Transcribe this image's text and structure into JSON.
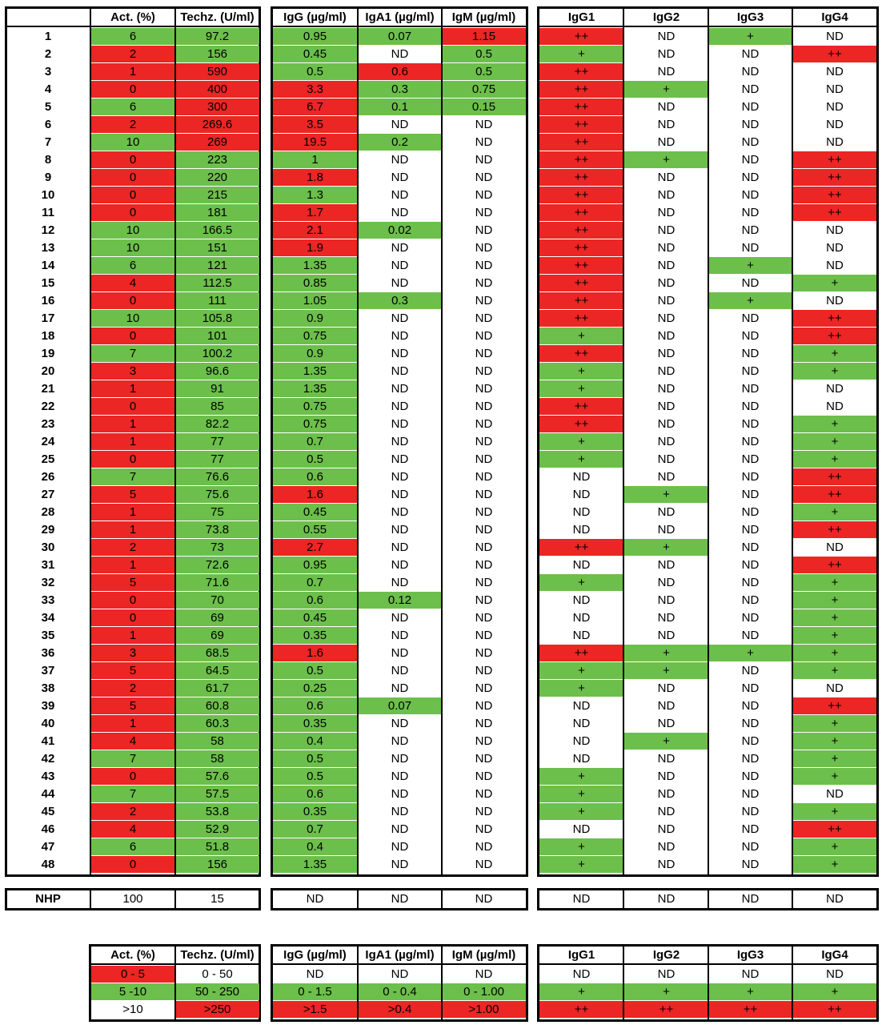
{
  "headers": {
    "act": "Act. (%)",
    "techz": "Techz. (U/ml)",
    "igg": "IgG (µg/ml)",
    "iga1": "IgA1 (µg/ml)",
    "igm": "IgM (µg/ml)",
    "igg1": "IgG1",
    "igg2": "IgG2",
    "igg3": "IgG3",
    "igg4": "IgG4"
  },
  "colors": {
    "green": "#6cbf4b",
    "red": "#ec2525",
    "white": "#ffffff"
  },
  "rows": [
    {
      "id": "1",
      "act": "6",
      "techz": "97.2",
      "igg": "0.95",
      "iga1": "0.07",
      "igm": "1.15",
      "igg1": "++",
      "igg2": "ND",
      "igg3": "+",
      "igg4": "ND"
    },
    {
      "id": "2",
      "act": "2",
      "techz": "156",
      "igg": "0.45",
      "iga1": "ND",
      "igm": "0.5",
      "igg1": "+",
      "igg2": "ND",
      "igg3": "ND",
      "igg4": "++"
    },
    {
      "id": "3",
      "act": "1",
      "techz": "590",
      "igg": "0.5",
      "iga1": "0.6",
      "igm": "0.5",
      "igg1": "++",
      "igg2": "ND",
      "igg3": "ND",
      "igg4": "ND"
    },
    {
      "id": "4",
      "act": "0",
      "techz": "400",
      "igg": "3.3",
      "iga1": "0.3",
      "igm": "0.75",
      "igg1": "++",
      "igg2": "+",
      "igg3": "ND",
      "igg4": "ND"
    },
    {
      "id": "5",
      "act": "6",
      "techz": "300",
      "igg": "6.7",
      "iga1": "0.1",
      "igm": "0.15",
      "igg1": "++",
      "igg2": "ND",
      "igg3": "ND",
      "igg4": "ND"
    },
    {
      "id": "6",
      "act": "2",
      "techz": "269.6",
      "igg": "3.5",
      "iga1": "ND",
      "igm": "ND",
      "igg1": "++",
      "igg2": "ND",
      "igg3": "ND",
      "igg4": "ND"
    },
    {
      "id": "7",
      "act": "10",
      "techz": "269",
      "igg": "19.5",
      "iga1": "0.2",
      "igm": "ND",
      "igg1": "++",
      "igg2": "ND",
      "igg3": "ND",
      "igg4": "ND"
    },
    {
      "id": "8",
      "act": "0",
      "techz": "223",
      "igg": "1",
      "iga1": "ND",
      "igm": "ND",
      "igg1": "++",
      "igg2": "+",
      "igg3": "ND",
      "igg4": "++"
    },
    {
      "id": "9",
      "act": "0",
      "techz": "220",
      "igg": "1.8",
      "iga1": "ND",
      "igm": "ND",
      "igg1": "++",
      "igg2": "ND",
      "igg3": "ND",
      "igg4": "++"
    },
    {
      "id": "10",
      "act": "0",
      "techz": "215",
      "igg": "1.3",
      "iga1": "ND",
      "igm": "ND",
      "igg1": "++",
      "igg2": "ND",
      "igg3": "ND",
      "igg4": "++"
    },
    {
      "id": "11",
      "act": "0",
      "techz": "181",
      "igg": "1.7",
      "iga1": "ND",
      "igm": "ND",
      "igg1": "++",
      "igg2": "ND",
      "igg3": "ND",
      "igg4": "++"
    },
    {
      "id": "12",
      "act": "10",
      "techz": "166.5",
      "igg": "2.1",
      "iga1": "0.02",
      "igm": "ND",
      "igg1": "++",
      "igg2": "ND",
      "igg3": "ND",
      "igg4": "ND"
    },
    {
      "id": "13",
      "act": "10",
      "techz": "151",
      "igg": "1.9",
      "iga1": "ND",
      "igm": "ND",
      "igg1": "++",
      "igg2": "ND",
      "igg3": "ND",
      "igg4": "ND"
    },
    {
      "id": "14",
      "act": "6",
      "techz": "121",
      "igg": "1.35",
      "iga1": "ND",
      "igm": "ND",
      "igg1": "++",
      "igg2": "ND",
      "igg3": "+",
      "igg4": "ND"
    },
    {
      "id": "15",
      "act": "4",
      "techz": "112.5",
      "igg": "0.85",
      "iga1": "ND",
      "igm": "ND",
      "igg1": "++",
      "igg2": "ND",
      "igg3": "ND",
      "igg4": "+"
    },
    {
      "id": "16",
      "act": "0",
      "techz": "111",
      "igg": "1.05",
      "iga1": "0.3",
      "igm": "ND",
      "igg1": "++",
      "igg2": "ND",
      "igg3": "+",
      "igg4": "ND"
    },
    {
      "id": "17",
      "act": "10",
      "techz": "105.8",
      "igg": "0.9",
      "iga1": "ND",
      "igm": "ND",
      "igg1": "++",
      "igg2": "ND",
      "igg3": "ND",
      "igg4": "++"
    },
    {
      "id": "18",
      "act": "0",
      "techz": "101",
      "igg": "0.75",
      "iga1": "ND",
      "igm": "ND",
      "igg1": "+",
      "igg2": "ND",
      "igg3": "ND",
      "igg4": "++"
    },
    {
      "id": "19",
      "act": "7",
      "techz": "100.2",
      "igg": "0.9",
      "iga1": "ND",
      "igm": "ND",
      "igg1": "++",
      "igg2": "ND",
      "igg3": "ND",
      "igg4": "+"
    },
    {
      "id": "20",
      "act": "3",
      "techz": "96.6",
      "igg": "1.35",
      "iga1": "ND",
      "igm": "ND",
      "igg1": "+",
      "igg2": "ND",
      "igg3": "ND",
      "igg4": "+"
    },
    {
      "id": "21",
      "act": "1",
      "techz": "91",
      "igg": "1.35",
      "iga1": "ND",
      "igm": "ND",
      "igg1": "+",
      "igg2": "ND",
      "igg3": "ND",
      "igg4": "ND"
    },
    {
      "id": "22",
      "act": "0",
      "techz": "85",
      "igg": "0.75",
      "iga1": "ND",
      "igm": "ND",
      "igg1": "++",
      "igg2": "ND",
      "igg3": "ND",
      "igg4": "ND"
    },
    {
      "id": "23",
      "act": "1",
      "techz": "82.2",
      "igg": "0.75",
      "iga1": "ND",
      "igm": "ND",
      "igg1": "++",
      "igg2": "ND",
      "igg3": "ND",
      "igg4": "+"
    },
    {
      "id": "24",
      "act": "1",
      "techz": "77",
      "igg": "0.7",
      "iga1": "ND",
      "igm": "ND",
      "igg1": "+",
      "igg2": "ND",
      "igg3": "ND",
      "igg4": "+"
    },
    {
      "id": "25",
      "act": "0",
      "techz": "77",
      "igg": "0.5",
      "iga1": "ND",
      "igm": "ND",
      "igg1": "+",
      "igg2": "ND",
      "igg3": "ND",
      "igg4": "+"
    },
    {
      "id": "26",
      "act": "7",
      "techz": "76.6",
      "igg": "0.6",
      "iga1": "ND",
      "igm": "ND",
      "igg1": "ND",
      "igg2": "ND",
      "igg3": "ND",
      "igg4": "++"
    },
    {
      "id": "27",
      "act": "5",
      "techz": "75.6",
      "igg": "1.6",
      "iga1": "ND",
      "igm": "ND",
      "igg1": "ND",
      "igg2": "+",
      "igg3": "ND",
      "igg4": "++"
    },
    {
      "id": "28",
      "act": "1",
      "techz": "75",
      "igg": "0.45",
      "iga1": "ND",
      "igm": "ND",
      "igg1": "ND",
      "igg2": "ND",
      "igg3": "ND",
      "igg4": "+"
    },
    {
      "id": "29",
      "act": "1",
      "techz": "73.8",
      "igg": "0.55",
      "iga1": "ND",
      "igm": "ND",
      "igg1": "ND",
      "igg2": "ND",
      "igg3": "ND",
      "igg4": "++"
    },
    {
      "id": "30",
      "act": "2",
      "techz": "73",
      "igg": "2.7",
      "iga1": "ND",
      "igm": "ND",
      "igg1": "++",
      "igg2": "+",
      "igg3": "ND",
      "igg4": "ND"
    },
    {
      "id": "31",
      "act": "1",
      "techz": "72.6",
      "igg": "0.95",
      "iga1": "ND",
      "igm": "ND",
      "igg1": "ND",
      "igg2": "ND",
      "igg3": "ND",
      "igg4": "++"
    },
    {
      "id": "32",
      "act": "5",
      "techz": "71.6",
      "igg": "0.7",
      "iga1": "ND",
      "igm": "ND",
      "igg1": "+",
      "igg2": "ND",
      "igg3": "ND",
      "igg4": "+"
    },
    {
      "id": "33",
      "act": "0",
      "techz": "70",
      "igg": "0.6",
      "iga1": "0.12",
      "igm": "ND",
      "igg1": "ND",
      "igg2": "ND",
      "igg3": "ND",
      "igg4": "+"
    },
    {
      "id": "34",
      "act": "0",
      "techz": "69",
      "igg": "0.45",
      "iga1": "ND",
      "igm": "ND",
      "igg1": "ND",
      "igg2": "ND",
      "igg3": "ND",
      "igg4": "+"
    },
    {
      "id": "35",
      "act": "1",
      "techz": "69",
      "igg": "0.35",
      "iga1": "ND",
      "igm": "ND",
      "igg1": "ND",
      "igg2": "ND",
      "igg3": "ND",
      "igg4": "+"
    },
    {
      "id": "36",
      "act": "3",
      "techz": "68.5",
      "igg": "1.6",
      "iga1": "ND",
      "igm": "ND",
      "igg1": "++",
      "igg2": "+",
      "igg3": "+",
      "igg4": "+"
    },
    {
      "id": "37",
      "act": "5",
      "techz": "64.5",
      "igg": "0.5",
      "iga1": "ND",
      "igm": "ND",
      "igg1": "+",
      "igg2": "+",
      "igg3": "ND",
      "igg4": "+"
    },
    {
      "id": "38",
      "act": "2",
      "techz": "61.7",
      "igg": "0.25",
      "iga1": "ND",
      "igm": "ND",
      "igg1": "+",
      "igg2": "ND",
      "igg3": "ND",
      "igg4": "ND"
    },
    {
      "id": "39",
      "act": "5",
      "techz": "60.8",
      "igg": "0.6",
      "iga1": "0.07",
      "igm": "ND",
      "igg1": "ND",
      "igg2": "ND",
      "igg3": "ND",
      "igg4": "++"
    },
    {
      "id": "40",
      "act": "1",
      "techz": "60.3",
      "igg": "0.35",
      "iga1": "ND",
      "igm": "ND",
      "igg1": "ND",
      "igg2": "ND",
      "igg3": "ND",
      "igg4": "+"
    },
    {
      "id": "41",
      "act": "4",
      "techz": "58",
      "igg": "0.4",
      "iga1": "ND",
      "igm": "ND",
      "igg1": "ND",
      "igg2": "+",
      "igg3": "ND",
      "igg4": "+"
    },
    {
      "id": "42",
      "act": "7",
      "techz": "58",
      "igg": "0.5",
      "iga1": "ND",
      "igm": "ND",
      "igg1": "ND",
      "igg2": "ND",
      "igg3": "ND",
      "igg4": "+"
    },
    {
      "id": "43",
      "act": "0",
      "techz": "57.6",
      "igg": "0.5",
      "iga1": "ND",
      "igm": "ND",
      "igg1": "+",
      "igg2": "ND",
      "igg3": "ND",
      "igg4": "+"
    },
    {
      "id": "44",
      "act": "7",
      "techz": "57.5",
      "igg": "0.6",
      "iga1": "ND",
      "igm": "ND",
      "igg1": "+",
      "igg2": "ND",
      "igg3": "ND",
      "igg4": "ND"
    },
    {
      "id": "45",
      "act": "2",
      "techz": "53.8",
      "igg": "0.35",
      "iga1": "ND",
      "igm": "ND",
      "igg1": "+",
      "igg2": "ND",
      "igg3": "ND",
      "igg4": "+"
    },
    {
      "id": "46",
      "act": "4",
      "techz": "52.9",
      "igg": "0.7",
      "iga1": "ND",
      "igm": "ND",
      "igg1": "ND",
      "igg2": "ND",
      "igg3": "ND",
      "igg4": "++"
    },
    {
      "id": "47",
      "act": "6",
      "techz": "51.8",
      "igg": "0.4",
      "iga1": "ND",
      "igm": "ND",
      "igg1": "+",
      "igg2": "ND",
      "igg3": "ND",
      "igg4": "+"
    },
    {
      "id": "48",
      "act": "0",
      "techz": "156",
      "igg": "1.35",
      "iga1": "ND",
      "igm": "ND",
      "igg1": "+",
      "igg2": "ND",
      "igg3": "ND",
      "igg4": "+"
    }
  ],
  "nhp": {
    "id": "NHP",
    "act": "100",
    "techz": "15",
    "igg": "ND",
    "iga1": "ND",
    "igm": "ND",
    "igg1": "ND",
    "igg2": "ND",
    "igg3": "ND",
    "igg4": "ND"
  },
  "legend": [
    {
      "act": "0 - 5",
      "techz": "0 - 50",
      "igg": "ND",
      "iga1": "ND",
      "igm": "ND",
      "igg1": "ND",
      "igg2": "ND",
      "igg3": "ND",
      "igg4": "ND"
    },
    {
      "act": "5 -10",
      "techz": "50 - 250",
      "igg": "0 - 1.5",
      "iga1": "0 - 0.4",
      "igm": "0 - 1.00",
      "igg1": "+",
      "igg2": "+",
      "igg3": "+",
      "igg4": "+"
    },
    {
      "act": ">10",
      "techz": ">250",
      "igg": ">1.5",
      "iga1": ">0.4",
      "igm": ">1.00",
      "igg1": "++",
      "igg2": "++",
      "igg3": "++",
      "igg4": "++"
    }
  ]
}
